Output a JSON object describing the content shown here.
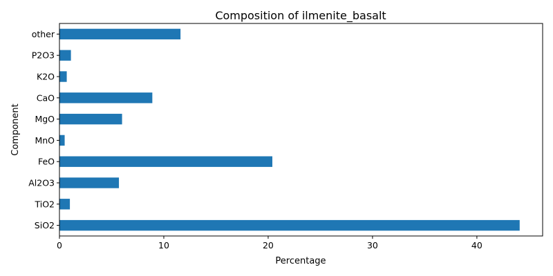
{
  "chart_data": {
    "type": "bar",
    "orientation": "horizontal",
    "title": "Composition of ilmenite_basalt",
    "xlabel": "Percentage",
    "ylabel": "Component",
    "categories": [
      "SiO2",
      "TiO2",
      "Al2O3",
      "FeO",
      "MnO",
      "MgO",
      "CaO",
      "K2O",
      "P2O3",
      "other"
    ],
    "values": [
      44.1,
      1.0,
      5.7,
      20.4,
      0.5,
      6.0,
      8.9,
      0.7,
      1.1,
      11.6
    ],
    "xlim": [
      0,
      46.3
    ],
    "xticks": [
      0,
      10,
      20,
      30,
      40
    ],
    "grid": false,
    "bar_color": "#1f77b4"
  }
}
